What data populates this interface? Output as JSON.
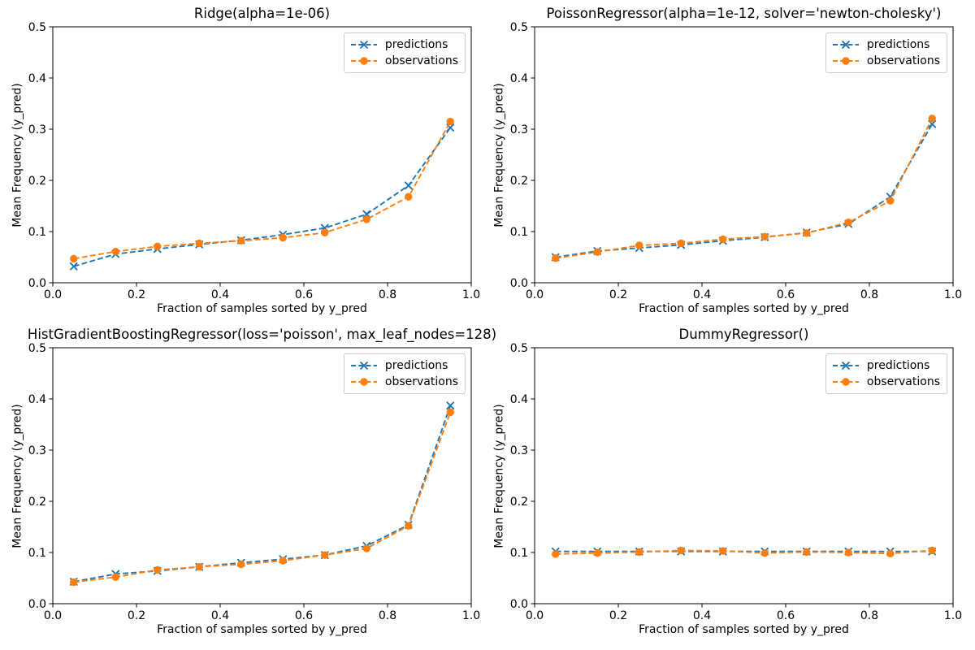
{
  "figure": {
    "background_color": "#ffffff",
    "text_color": "#000000",
    "spine_color": "#000000",
    "legend": {
      "position": "upper right",
      "border_color": "#cccccc",
      "background_color": "#ffffff"
    },
    "x_ticks": {
      "values": [
        0.0,
        0.2,
        0.4,
        0.6,
        0.8,
        1.0
      ],
      "labels": [
        "0.0",
        "0.2",
        "0.4",
        "0.6",
        "0.8",
        "1.0"
      ]
    },
    "y_ticks": {
      "values": [
        0.0,
        0.1,
        0.2,
        0.3,
        0.4,
        0.5
      ],
      "labels": [
        "0.0",
        "0.1",
        "0.2",
        "0.3",
        "0.4",
        "0.5"
      ]
    }
  },
  "chart_data": [
    {
      "type": "line",
      "title": "Ridge(alpha=1e-06)",
      "xlabel": "Fraction of samples sorted by y_pred",
      "ylabel": "Mean Frequency (y_pred)",
      "xlim": [
        0.0,
        1.0
      ],
      "ylim": [
        0.0,
        0.5
      ],
      "legend_position": "upper right",
      "grid": false,
      "x": [
        0.05,
        0.15,
        0.25,
        0.35,
        0.45,
        0.55,
        0.65,
        0.75,
        0.85,
        0.95
      ],
      "series": [
        {
          "name": "predictions",
          "color": "#1f77b4",
          "marker": "x",
          "linestyle": "dashed",
          "values": [
            0.032,
            0.056,
            0.066,
            0.075,
            0.083,
            0.094,
            0.107,
            0.134,
            0.19,
            0.303
          ]
        },
        {
          "name": "observations",
          "color": "#ff7f0e",
          "marker": "circle",
          "linestyle": "dashed",
          "values": [
            0.047,
            0.061,
            0.071,
            0.077,
            0.082,
            0.088,
            0.098,
            0.124,
            0.168,
            0.315
          ]
        }
      ]
    },
    {
      "type": "line",
      "title": "PoissonRegressor(alpha=1e-12, solver='newton-cholesky')",
      "xlabel": "Fraction of samples sorted by y_pred",
      "ylabel": "Mean Frequency (y_pred)",
      "xlim": [
        0.0,
        1.0
      ],
      "ylim": [
        0.0,
        0.5
      ],
      "legend_position": "upper right",
      "grid": false,
      "x": [
        0.05,
        0.15,
        0.25,
        0.35,
        0.45,
        0.55,
        0.65,
        0.75,
        0.85,
        0.95
      ],
      "series": [
        {
          "name": "predictions",
          "color": "#1f77b4",
          "marker": "x",
          "linestyle": "dashed",
          "values": [
            0.05,
            0.062,
            0.068,
            0.074,
            0.082,
            0.089,
            0.098,
            0.115,
            0.168,
            0.31
          ]
        },
        {
          "name": "observations",
          "color": "#ff7f0e",
          "marker": "circle",
          "linestyle": "dashed",
          "values": [
            0.048,
            0.06,
            0.073,
            0.077,
            0.085,
            0.09,
            0.097,
            0.118,
            0.16,
            0.321
          ]
        }
      ]
    },
    {
      "type": "line",
      "title": "HistGradientBoostingRegressor(loss='poisson', max_leaf_nodes=128)",
      "xlabel": "Fraction of samples sorted by y_pred",
      "ylabel": "Mean Frequency (y_pred)",
      "xlim": [
        0.0,
        1.0
      ],
      "ylim": [
        0.0,
        0.5
      ],
      "legend_position": "upper right",
      "grid": false,
      "x": [
        0.05,
        0.15,
        0.25,
        0.35,
        0.45,
        0.55,
        0.65,
        0.75,
        0.85,
        0.95
      ],
      "series": [
        {
          "name": "predictions",
          "color": "#1f77b4",
          "marker": "x",
          "linestyle": "dashed",
          "values": [
            0.043,
            0.058,
            0.064,
            0.072,
            0.08,
            0.087,
            0.095,
            0.113,
            0.154,
            0.387
          ]
        },
        {
          "name": "observations",
          "color": "#ff7f0e",
          "marker": "circle",
          "linestyle": "dashed",
          "values": [
            0.042,
            0.052,
            0.066,
            0.072,
            0.077,
            0.084,
            0.095,
            0.108,
            0.152,
            0.374
          ]
        }
      ]
    },
    {
      "type": "line",
      "title": "DummyRegressor()",
      "xlabel": "Fraction of samples sorted by y_pred",
      "ylabel": "Mean Frequency (y_pred)",
      "xlim": [
        0.0,
        1.0
      ],
      "ylim": [
        0.0,
        0.5
      ],
      "legend_position": "upper right",
      "grid": false,
      "x": [
        0.05,
        0.15,
        0.25,
        0.35,
        0.45,
        0.55,
        0.65,
        0.75,
        0.85,
        0.95
      ],
      "series": [
        {
          "name": "predictions",
          "color": "#1f77b4",
          "marker": "x",
          "linestyle": "dashed",
          "values": [
            0.102,
            0.102,
            0.102,
            0.102,
            0.102,
            0.102,
            0.102,
            0.102,
            0.102,
            0.102
          ]
        },
        {
          "name": "observations",
          "color": "#ff7f0e",
          "marker": "circle",
          "linestyle": "dashed",
          "values": [
            0.097,
            0.099,
            0.101,
            0.104,
            0.103,
            0.099,
            0.101,
            0.1,
            0.098,
            0.104
          ]
        }
      ]
    }
  ]
}
